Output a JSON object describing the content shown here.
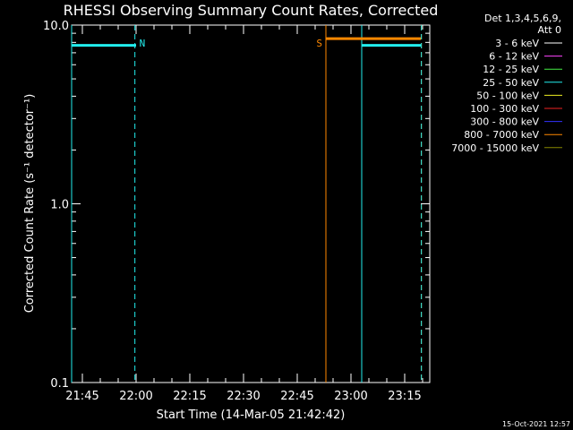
{
  "chart_data": {
    "type": "line",
    "title": "RHESSI Observing Summary Count Rates, Corrected",
    "xlabel": "Start Time (14-Mar-05 21:42:42)",
    "ylabel": "Corrected Count Rate (s⁻¹ detector⁻¹)",
    "y_scale": "log",
    "ylim": [
      0.1,
      10.0
    ],
    "xlim": [
      "21:42:00",
      "23:22:00"
    ],
    "y_ticks": [
      "0.1",
      "1.0",
      "10.0"
    ],
    "x_ticks": [
      "21:45",
      "22:00",
      "22:15",
      "22:30",
      "22:45",
      "23:00",
      "23:15"
    ],
    "legend_placement": "right",
    "legend_header": [
      "Det 1,3,4,5,6,9,",
      "Att 0"
    ],
    "legend": [
      {
        "label": "3 - 6 keV",
        "color": "#ffffff"
      },
      {
        "label": "6 - 12 keV",
        "color": "#ff44ff"
      },
      {
        "label": "12 - 25 keV",
        "color": "#44ee44"
      },
      {
        "label": "25 - 50 keV",
        "color": "#22eeee"
      },
      {
        "label": "50 - 100 keV",
        "color": "#eeee22"
      },
      {
        "label": "100 - 300 keV",
        "color": "#ee2222"
      },
      {
        "label": "300 - 800 keV",
        "color": "#3333ff"
      },
      {
        "label": "800 - 7000 keV",
        "color": "#ff8800"
      },
      {
        "label": "7000 - 15000 keV",
        "color": "#888800"
      }
    ],
    "series": [
      {
        "band": "25 - 50 keV",
        "color": "#22eeee",
        "segments": [
          {
            "x": [
              "21:42:00",
              "22:00:00"
            ],
            "y": [
              7.7,
              7.7
            ]
          },
          {
            "x": [
              "23:03:00",
              "23:19:30"
            ],
            "y": [
              7.7,
              7.7
            ]
          }
        ]
      },
      {
        "band": "800 - 7000 keV",
        "color": "#ff8800",
        "segments": [
          {
            "x": [
              "22:53:00",
              "23:19:30"
            ],
            "y": [
              8.4,
              8.4
            ]
          }
        ]
      }
    ],
    "markers": [
      {
        "time": "21:42:00",
        "style": "solid",
        "color": "#22eeee",
        "label": ""
      },
      {
        "time": "21:59:40",
        "style": "dashed",
        "color": "#22eeee",
        "label": "N"
      },
      {
        "time": "22:53:00",
        "style": "solid",
        "color": "#ff8800",
        "label": "S"
      },
      {
        "time": "23:03:00",
        "style": "solid",
        "color": "#22eeee",
        "label": ""
      },
      {
        "time": "23:19:40",
        "style": "dashed",
        "color": "#ff8800",
        "label": ""
      },
      {
        "time": "23:19:40",
        "style": "dashed",
        "color": "#22eeee",
        "label": ""
      }
    ],
    "footer_timestamp": "15-Oct-2021 12:57"
  }
}
